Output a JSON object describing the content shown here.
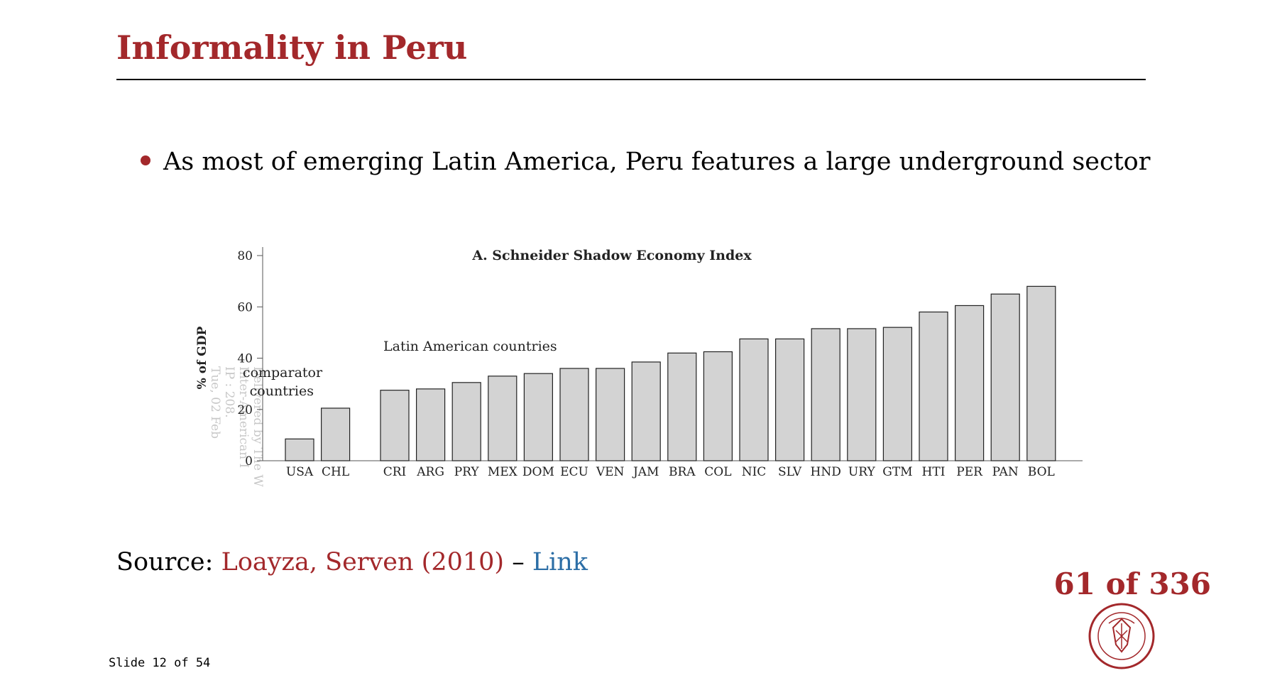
{
  "slide": {
    "title": "Informality in Peru",
    "bullet": "As most of emerging Latin America, Peru features a large underground sector",
    "source_label": "Source:",
    "source_ref": "Loayza, Serven (2010)",
    "source_dash": "–",
    "source_link": "Link",
    "page_counter": "61 of 336",
    "slide_number": "Slide 12 of 54",
    "accent_color": "#a3282b",
    "link_color": "#2c6ea6"
  },
  "chart_data": {
    "type": "bar",
    "title": "A. Schneider Shadow Economy Index",
    "ylabel": "% of GDP",
    "xlabel": "",
    "ylim": [
      0,
      80
    ],
    "yticks": [
      0,
      20,
      40,
      60,
      80
    ],
    "grid": false,
    "bar_color": "#d3d3d3",
    "groups": [
      {
        "label": "comparator countries",
        "categories": [
          "USA",
          "CHL"
        ],
        "values": [
          8.5,
          20.5
        ]
      },
      {
        "label": "Latin American countries",
        "categories": [
          "CRI",
          "ARG",
          "PRY",
          "MEX",
          "DOM",
          "ECU",
          "VEN",
          "JAM",
          "BRA",
          "COL",
          "NIC",
          "SLV",
          "HND",
          "URY",
          "GTM",
          "HTI",
          "PER",
          "PAN",
          "BOL"
        ],
        "values": [
          27.5,
          28,
          30.5,
          33,
          34,
          36,
          36,
          38.5,
          42,
          42.5,
          47.5,
          47.5,
          51.5,
          51.5,
          52,
          58,
          60.5,
          65,
          68
        ]
      }
    ],
    "watermark": [
      "Delivered by The W",
      "Inter-American I",
      "IP : 208.",
      "Tue, 02 Feb"
    ]
  }
}
